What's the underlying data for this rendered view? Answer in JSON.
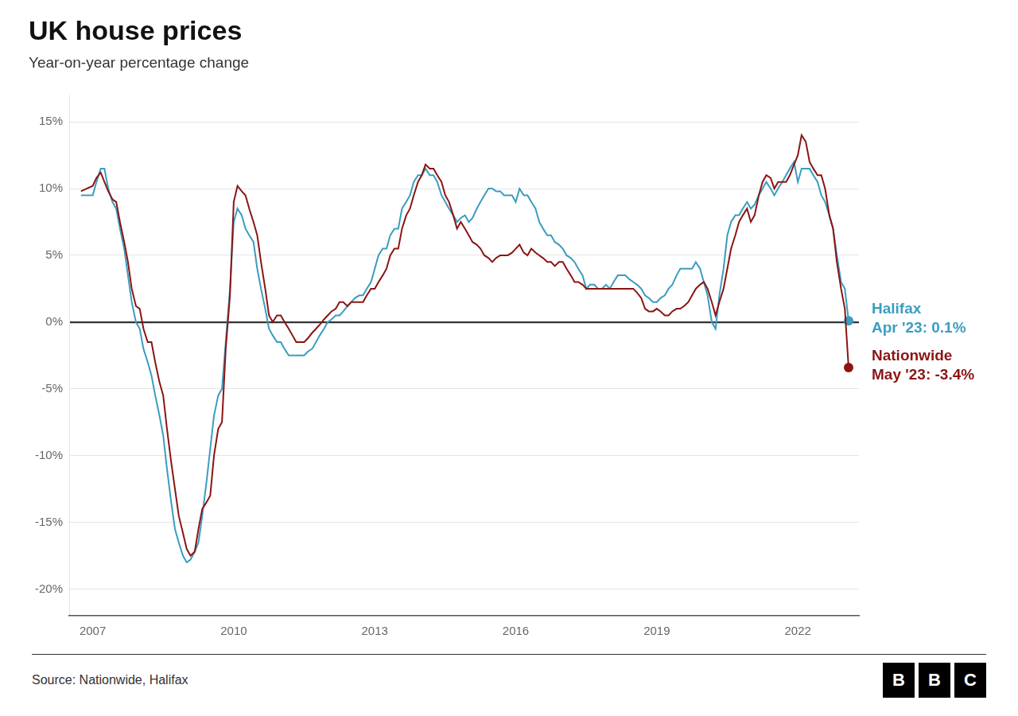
{
  "chart_data": {
    "type": "line",
    "title": "UK house prices",
    "subtitle": "Year-on-year percentage change",
    "source": "Source: Nationwide, Halifax",
    "logo": "BBC",
    "xlim": [
      2006.5,
      2023.3
    ],
    "xticks": [
      2007,
      2010,
      2013,
      2016,
      2019,
      2022
    ],
    "ylim": [
      -22,
      17
    ],
    "yticks": [
      {
        "value": -20,
        "label": "-20%"
      },
      {
        "value": -15,
        "label": "-15%"
      },
      {
        "value": -10,
        "label": "-10%"
      },
      {
        "value": -5,
        "label": "-5%"
      },
      {
        "value": 0,
        "label": "0%"
      },
      {
        "value": 5,
        "label": "5%"
      },
      {
        "value": 10,
        "label": "10%"
      },
      {
        "value": 15,
        "label": "15%"
      }
    ],
    "grid": true,
    "x": [
      2006.75,
      2007.0,
      2007.08,
      2007.17,
      2007.25,
      2007.33,
      2007.42,
      2007.5,
      2007.58,
      2007.67,
      2007.75,
      2007.83,
      2007.92,
      2008.0,
      2008.08,
      2008.17,
      2008.25,
      2008.33,
      2008.42,
      2008.5,
      2008.58,
      2008.67,
      2008.75,
      2008.83,
      2008.92,
      2009.0,
      2009.08,
      2009.17,
      2009.25,
      2009.33,
      2009.42,
      2009.5,
      2009.58,
      2009.67,
      2009.75,
      2009.83,
      2009.92,
      2010.0,
      2010.08,
      2010.17,
      2010.25,
      2010.33,
      2010.42,
      2010.5,
      2010.58,
      2010.67,
      2010.75,
      2010.83,
      2010.92,
      2011.0,
      2011.08,
      2011.17,
      2011.25,
      2011.33,
      2011.42,
      2011.5,
      2011.58,
      2011.67,
      2011.75,
      2011.83,
      2011.92,
      2012.0,
      2012.08,
      2012.17,
      2012.25,
      2012.33,
      2012.42,
      2012.5,
      2012.58,
      2012.67,
      2012.75,
      2012.83,
      2012.92,
      2013.0,
      2013.08,
      2013.17,
      2013.25,
      2013.33,
      2013.42,
      2013.5,
      2013.58,
      2013.67,
      2013.75,
      2013.83,
      2013.92,
      2014.0,
      2014.08,
      2014.17,
      2014.25,
      2014.33,
      2014.42,
      2014.5,
      2014.58,
      2014.67,
      2014.75,
      2014.83,
      2014.92,
      2015.0,
      2015.08,
      2015.17,
      2015.25,
      2015.33,
      2015.42,
      2015.5,
      2015.58,
      2015.67,
      2015.75,
      2015.83,
      2015.92,
      2016.0,
      2016.08,
      2016.17,
      2016.25,
      2016.33,
      2016.42,
      2016.5,
      2016.58,
      2016.67,
      2016.75,
      2016.83,
      2016.92,
      2017.0,
      2017.08,
      2017.17,
      2017.25,
      2017.33,
      2017.42,
      2017.5,
      2017.58,
      2017.67,
      2017.75,
      2017.83,
      2017.92,
      2018.0,
      2018.08,
      2018.17,
      2018.25,
      2018.33,
      2018.42,
      2018.5,
      2018.58,
      2018.67,
      2018.75,
      2018.83,
      2018.92,
      2019.0,
      2019.08,
      2019.17,
      2019.25,
      2019.33,
      2019.42,
      2019.5,
      2019.58,
      2019.67,
      2019.75,
      2019.83,
      2019.92,
      2020.0,
      2020.08,
      2020.17,
      2020.25,
      2020.33,
      2020.42,
      2020.5,
      2020.58,
      2020.67,
      2020.75,
      2020.83,
      2020.92,
      2021.0,
      2021.08,
      2021.17,
      2021.25,
      2021.33,
      2021.42,
      2021.5,
      2021.58,
      2021.67,
      2021.75,
      2021.83,
      2021.92,
      2022.0,
      2022.08,
      2022.17,
      2022.25,
      2022.33,
      2022.42,
      2022.5,
      2022.58,
      2022.67,
      2022.75,
      2022.83,
      2022.92,
      2023.0,
      2023.08
    ],
    "series": [
      {
        "name": "Halifax",
        "color": "#3a9dbf",
        "end_label": "Apr '23: 0.1%",
        "values": [
          9.5,
          9.5,
          10.5,
          11.5,
          11.5,
          10.0,
          9.0,
          8.5,
          7.0,
          5.5,
          3.5,
          1.5,
          0.0,
          -0.5,
          -2.0,
          -3.0,
          -4.0,
          -5.5,
          -7.0,
          -8.5,
          -11.0,
          -13.5,
          -15.5,
          -16.5,
          -17.5,
          -18.0,
          -17.8,
          -17.2,
          -16.5,
          -14.5,
          -12.0,
          -9.5,
          -7.0,
          -5.5,
          -5.0,
          -1.5,
          2.5,
          7.5,
          8.5,
          8.0,
          7.0,
          6.5,
          6.0,
          4.0,
          2.5,
          1.0,
          -0.5,
          -1.0,
          -1.5,
          -1.5,
          -2.0,
          -2.5,
          -2.5,
          -2.5,
          -2.5,
          -2.5,
          -2.2,
          -2.0,
          -1.5,
          -1.0,
          -0.5,
          0.0,
          0.2,
          0.5,
          0.5,
          0.8,
          1.2,
          1.5,
          1.8,
          2.0,
          2.0,
          2.5,
          3.0,
          4.0,
          5.0,
          5.5,
          5.5,
          6.5,
          7.0,
          7.0,
          8.5,
          9.0,
          9.5,
          10.5,
          11.0,
          11.0,
          11.5,
          11.0,
          11.0,
          10.5,
          9.5,
          9.0,
          8.5,
          8.0,
          7.5,
          7.8,
          8.0,
          7.5,
          7.8,
          8.5,
          9.0,
          9.5,
          10.0,
          10.0,
          9.8,
          9.8,
          9.5,
          9.5,
          9.5,
          9.0,
          10.0,
          9.5,
          9.5,
          9.0,
          8.5,
          7.5,
          7.0,
          6.5,
          6.5,
          6.0,
          5.8,
          5.5,
          5.0,
          4.8,
          4.5,
          4.0,
          3.5,
          2.5,
          2.8,
          2.8,
          2.5,
          2.5,
          2.8,
          2.5,
          3.0,
          3.5,
          3.5,
          3.5,
          3.2,
          3.0,
          2.8,
          2.5,
          2.0,
          1.8,
          1.5,
          1.5,
          1.8,
          2.0,
          2.5,
          2.8,
          3.5,
          4.0,
          4.0,
          4.0,
          4.0,
          4.5,
          4.0,
          3.0,
          2.0,
          0.0,
          -0.5,
          2.0,
          4.0,
          6.5,
          7.5,
          8.0,
          8.0,
          8.5,
          9.0,
          8.5,
          8.8,
          9.5,
          10.0,
          10.5,
          10.0,
          9.5,
          10.0,
          10.5,
          11.0,
          11.5,
          12.0,
          10.5,
          11.5,
          11.5,
          11.5,
          11.0,
          10.5,
          9.5,
          9.0,
          8.0,
          7.0,
          5.0,
          3.0,
          2.5,
          0.1
        ]
      },
      {
        "name": "Nationwide",
        "color": "#8b1414",
        "end_label": "May '23: -3.4%",
        "values": [
          9.8,
          10.2,
          10.8,
          11.2,
          10.5,
          9.8,
          9.2,
          9.0,
          7.5,
          6.0,
          4.5,
          2.5,
          1.2,
          1.0,
          -0.5,
          -1.5,
          -1.5,
          -3.0,
          -4.5,
          -5.5,
          -8.0,
          -10.5,
          -12.5,
          -14.5,
          -15.8,
          -17.0,
          -17.5,
          -17.2,
          -15.5,
          -14.0,
          -13.5,
          -13.0,
          -10.0,
          -8.0,
          -7.5,
          -2.0,
          2.0,
          9.0,
          10.2,
          9.8,
          9.5,
          8.5,
          7.5,
          6.5,
          4.5,
          2.5,
          0.5,
          0.0,
          0.5,
          0.5,
          0.0,
          -0.5,
          -1.0,
          -1.5,
          -1.5,
          -1.5,
          -1.2,
          -0.8,
          -0.5,
          -0.2,
          0.2,
          0.5,
          0.8,
          1.0,
          1.5,
          1.5,
          1.2,
          1.5,
          1.5,
          1.5,
          1.5,
          2.0,
          2.5,
          2.5,
          3.0,
          3.5,
          4.0,
          5.0,
          5.5,
          5.5,
          7.0,
          8.0,
          8.5,
          9.5,
          10.5,
          11.0,
          11.8,
          11.5,
          11.5,
          11.0,
          10.5,
          9.5,
          9.0,
          8.0,
          7.0,
          7.5,
          7.0,
          6.5,
          6.0,
          5.8,
          5.5,
          5.0,
          4.8,
          4.5,
          4.8,
          5.0,
          5.0,
          5.0,
          5.2,
          5.5,
          5.8,
          5.2,
          5.0,
          5.5,
          5.2,
          5.0,
          4.8,
          4.5,
          4.5,
          4.2,
          4.5,
          4.5,
          4.0,
          3.5,
          3.0,
          3.0,
          2.8,
          2.5,
          2.5,
          2.5,
          2.5,
          2.5,
          2.5,
          2.5,
          2.5,
          2.5,
          2.5,
          2.5,
          2.5,
          2.5,
          2.2,
          1.8,
          1.0,
          0.8,
          0.8,
          1.0,
          0.8,
          0.5,
          0.5,
          0.8,
          1.0,
          1.0,
          1.2,
          1.5,
          2.0,
          2.5,
          2.8,
          3.0,
          2.5,
          1.5,
          0.5,
          1.5,
          2.5,
          4.0,
          5.5,
          6.5,
          7.5,
          8.0,
          8.5,
          7.5,
          8.0,
          9.5,
          10.5,
          11.0,
          10.8,
          10.0,
          10.5,
          10.5,
          10.5,
          11.0,
          11.8,
          12.5,
          14.0,
          13.5,
          12.0,
          11.5,
          11.0,
          11.0,
          10.0,
          8.0,
          7.0,
          4.5,
          2.5,
          1.0,
          -3.4
        ]
      }
    ]
  }
}
